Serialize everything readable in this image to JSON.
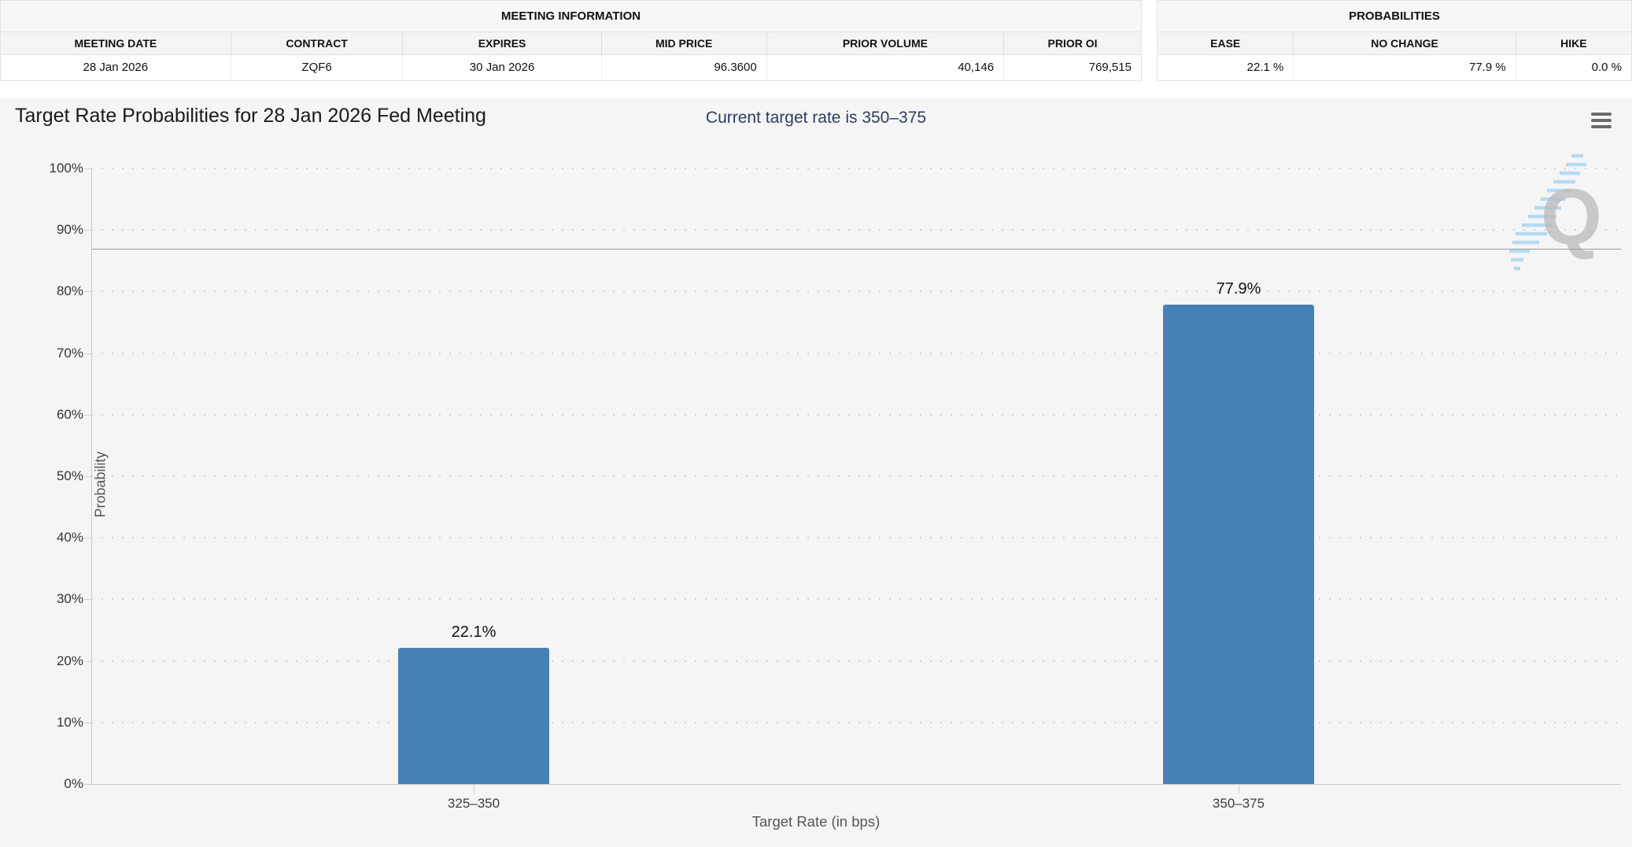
{
  "meeting_info": {
    "title": "MEETING INFORMATION",
    "columns": [
      "MEETING DATE",
      "CONTRACT",
      "EXPIRES",
      "MID PRICE",
      "PRIOR VOLUME",
      "PRIOR OI"
    ],
    "row": [
      "28 Jan 2026",
      "ZQF6",
      "30 Jan 2026",
      "96.3600",
      "40,146",
      "769,515"
    ]
  },
  "probabilities": {
    "title": "PROBABILITIES",
    "columns": [
      "EASE",
      "NO CHANGE",
      "HIKE"
    ],
    "row": [
      "22.1 %",
      "77.9 %",
      "0.0 %"
    ]
  },
  "chart_data": {
    "type": "bar",
    "title": "Target Rate Probabilities for 28 Jan 2026 Fed Meeting",
    "subtitle": "Current target rate is 350–375",
    "categories": [
      "325–350",
      "350–375"
    ],
    "values": [
      22.1,
      77.9
    ],
    "value_labels": [
      "22.1%",
      "77.9%"
    ],
    "xlabel": "Target Rate (in bps)",
    "ylabel": "Probability",
    "ylim": [
      0,
      100
    ],
    "ytick_step": 10,
    "ytick_suffix": "%",
    "reference_line_y": 87,
    "grid": "dotted-horizontal",
    "legend": "none",
    "bar_color": "#4681b6"
  },
  "icons": {
    "context_menu": "hamburger",
    "watermark": "quikstrike-q"
  },
  "colors": {
    "panel_bg": "#f5f5f5",
    "subtitle": "#2c3e5f",
    "watermark_q": "#bdbdbd",
    "watermark_stripes": "#a9d7f2"
  }
}
